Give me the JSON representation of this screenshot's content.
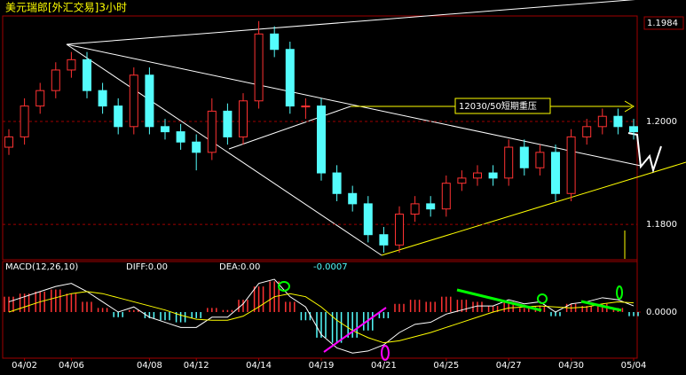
{
  "chart_data": [
    {
      "type": "candlestick",
      "title": "美元瑞郎[外汇交易]3小时",
      "current_price": "1.1984",
      "annotation": "12030/50短期重压",
      "categories": [
        null,
        "04/02",
        null,
        null,
        "04/06",
        null,
        null,
        null,
        null,
        "04/08",
        null,
        null,
        "04/12",
        null,
        null,
        null,
        "04/14",
        null,
        null,
        null,
        "04/19",
        null,
        null,
        null,
        "04/21",
        null,
        null,
        null,
        "04/25",
        null,
        null,
        null,
        "04/27",
        null,
        null,
        null,
        "04/30",
        null,
        null,
        null,
        "05/04"
      ],
      "open": [
        1.195,
        1.197,
        1.203,
        1.206,
        1.21,
        1.212,
        1.206,
        1.203,
        1.199,
        1.209,
        1.199,
        1.198,
        1.196,
        1.194,
        1.202,
        1.197,
        1.204,
        1.217,
        1.214,
        1.203,
        1.203,
        1.19,
        1.186,
        1.184,
        1.178,
        1.176,
        1.182,
        1.184,
        1.183,
        1.188,
        1.189,
        1.19,
        1.189,
        1.195,
        1.191,
        1.194,
        1.186,
        1.197,
        1.199,
        1.201,
        1.199
      ],
      "high": [
        1.1985,
        1.2045,
        1.2075,
        1.2115,
        1.2135,
        1.2135,
        1.2075,
        1.2045,
        1.2105,
        1.2105,
        1.2005,
        1.1995,
        1.1975,
        1.2045,
        1.2035,
        1.2055,
        1.2195,
        1.2185,
        1.2155,
        1.2045,
        1.2045,
        1.1915,
        1.1875,
        1.1855,
        1.1795,
        1.1835,
        1.1855,
        1.1855,
        1.1895,
        1.1905,
        1.1915,
        1.1915,
        1.1965,
        1.1965,
        1.1955,
        1.1955,
        1.1985,
        1.2005,
        1.2025,
        1.2025,
        1.2005
      ],
      "low": [
        1.1935,
        1.1955,
        1.2015,
        1.2045,
        1.2085,
        1.2045,
        1.2015,
        1.1975,
        1.1975,
        1.1975,
        1.1965,
        1.1945,
        1.1905,
        1.1925,
        1.1955,
        1.1955,
        1.2025,
        1.2125,
        1.2015,
        1.2005,
        1.1885,
        1.1845,
        1.1825,
        1.1765,
        1.1745,
        1.1745,
        1.1805,
        1.1815,
        1.1815,
        1.1865,
        1.1875,
        1.1875,
        1.1875,
        1.1895,
        1.1895,
        1.1845,
        1.1845,
        1.1955,
        1.1975,
        1.1975,
        1.1965
      ],
      "close": [
        1.197,
        1.203,
        1.206,
        1.21,
        1.212,
        1.206,
        1.203,
        1.199,
        1.209,
        1.199,
        1.198,
        1.196,
        1.194,
        1.202,
        1.197,
        1.204,
        1.217,
        1.214,
        1.203,
        1.203,
        1.19,
        1.186,
        1.184,
        1.178,
        1.176,
        1.182,
        1.184,
        1.183,
        1.188,
        1.189,
        1.19,
        1.189,
        1.195,
        1.191,
        1.194,
        1.186,
        1.197,
        1.199,
        1.201,
        1.199,
        1.198
      ],
      "up_color": "#ff3232",
      "down_color": "#54fcfc",
      "ylim": [
        1.1733,
        1.2205
      ],
      "yticks": [
        {
          "value": 1.2,
          "label": "1.2000"
        },
        {
          "value": 1.18,
          "label": "1.1800"
        }
      ],
      "grid": true,
      "grid_color": "#a00000"
    },
    {
      "type": "macd",
      "title": "MACD(12,26,10)",
      "readout": [
        "DIFF:0.00",
        "DEA:0.00",
        "-0.0007"
      ],
      "ylim": [
        -0.0045,
        0.0045
      ],
      "yticks": [
        {
          "value": 0,
          "label": "0.0000"
        }
      ],
      "histogram": {
        "values": [
          0.0015,
          0.0018,
          0.002,
          0.0022,
          0.0018,
          0.001,
          0.0004,
          -0.0005,
          0.0002,
          -0.0006,
          -0.0008,
          -0.001,
          -0.0006,
          0.0004,
          0.0002,
          0.0012,
          0.0025,
          0.003,
          0.001,
          -0.0008,
          -0.0025,
          -0.003,
          -0.0025,
          -0.0018,
          -0.0006,
          0.0008,
          0.0012,
          0.001,
          0.0015,
          0.0012,
          0.001,
          0.0006,
          0.001,
          0.0004,
          0.0006,
          -0.0004,
          0.0008,
          0.0006,
          0.0008,
          0.0004,
          -0.0004
        ],
        "up_color": "#ff3232",
        "down_color": "#54fcfc"
      },
      "series": [
        {
          "color": "#ffffff",
          "values": [
            0.001,
            0.0015,
            0.002,
            0.0025,
            0.0028,
            0.002,
            0.001,
            0,
            0.0005,
            -0.0005,
            -0.001,
            -0.0015,
            -0.0015,
            -0.0005,
            -0.0005,
            0.0008,
            0.0028,
            0.0032,
            0.0015,
            0.0005,
            -0.0022,
            -0.0035,
            -0.004,
            -0.0038,
            -0.0032,
            -0.002,
            -0.0012,
            -0.001,
            -0.0002,
            0.0002,
            0.0006,
            0.0006,
            0.0012,
            0.0008,
            0.001,
            0,
            0.0008,
            0.001,
            0.0014,
            0.0012,
            0.0006
          ]
        },
        {
          "color": "#ffff00",
          "values": [
            0,
            0.0005,
            0.001,
            0.0014,
            0.0018,
            0.002,
            0.0018,
            0.0014,
            0.001,
            0.0006,
            0.0002,
            -0.0003,
            -0.0007,
            -0.0008,
            -0.0008,
            -0.0004,
            0.0005,
            0.0015,
            0.0018,
            0.0015,
            0.0005,
            -0.0008,
            -0.0018,
            -0.0025,
            -0.003,
            -0.0028,
            -0.0024,
            -0.002,
            -0.0015,
            -0.001,
            -0.0005,
            0,
            0.0004,
            0.0005,
            0.0006,
            0.0005,
            0.0004,
            0.0005,
            0.0008,
            0.001,
            0.0009
          ]
        }
      ]
    }
  ]
}
